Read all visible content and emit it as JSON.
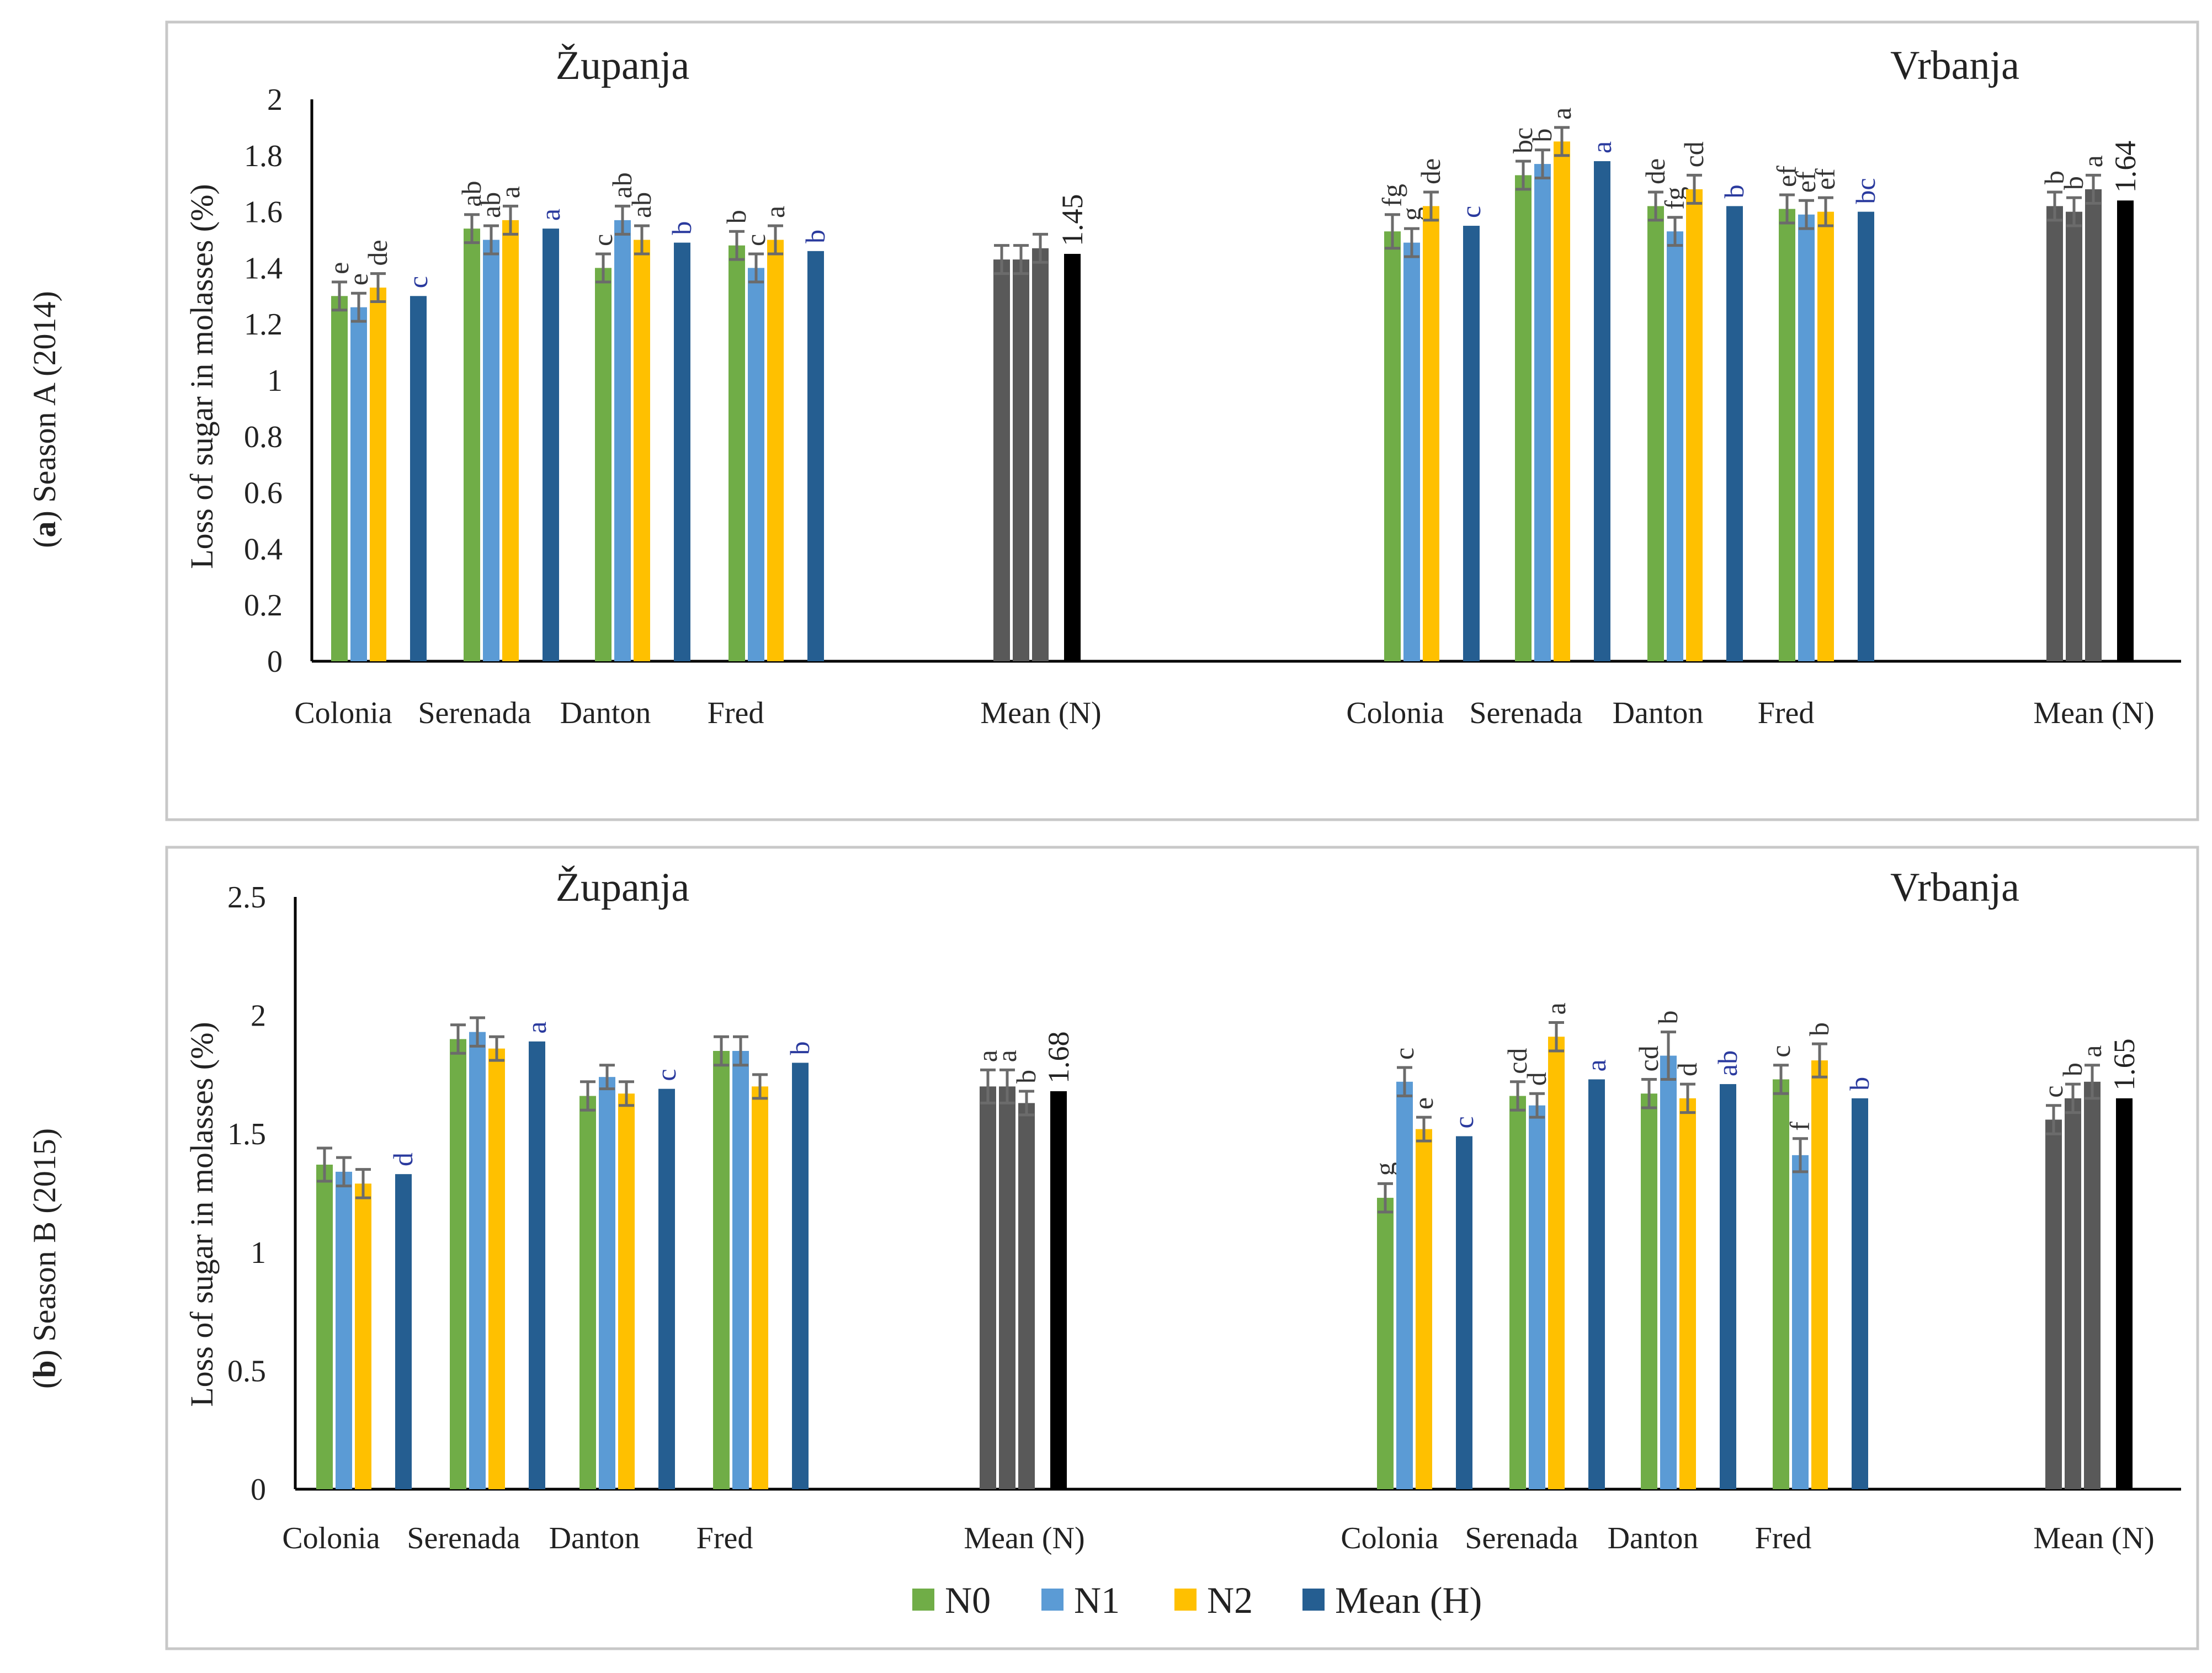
{
  "colors": {
    "N0": "#70ad47",
    "N1": "#5b9bd5",
    "N2": "#ffc000",
    "MeanH": "#255e91",
    "MeanN": "#595959",
    "MeanOverall": "#000000",
    "letterBlue": "#2a3a9e",
    "letterDark": "#333333"
  },
  "legend": [
    "N0",
    "N1",
    "N2",
    "Mean (H)"
  ],
  "chart_data": [
    {
      "type": "bar",
      "panel_label_bold": "a",
      "panel_label_rest": ") Season A (2014)",
      "panel_label_open": "(",
      "ylabel": "Loss of sugar in molasses (%)",
      "ylim": [
        0,
        2
      ],
      "yticks": [
        "0",
        "0.2",
        "0.4",
        "0.6",
        "0.8",
        "1",
        "1.2",
        "1.4",
        "1.6",
        "1.8",
        "2"
      ],
      "locations": [
        {
          "title": "Županja",
          "categories": [
            "Colonia",
            "Serenada",
            "Danton",
            "Fred"
          ],
          "series": [
            {
              "name": "N0",
              "values": [
                1.3,
                1.54,
                1.4,
                1.48
              ],
              "errors": [
                0.05,
                0.05,
                0.05,
                0.05
              ],
              "letters": [
                "e",
                "ab",
                "c",
                "b"
              ]
            },
            {
              "name": "N1",
              "values": [
                1.26,
                1.5,
                1.57,
                1.4
              ],
              "errors": [
                0.05,
                0.05,
                0.05,
                0.05
              ],
              "letters": [
                "e",
                "ab",
                "ab",
                "c"
              ]
            },
            {
              "name": "N2",
              "values": [
                1.33,
                1.57,
                1.5,
                1.5
              ],
              "errors": [
                0.05,
                0.05,
                0.05,
                0.05
              ],
              "letters": [
                "de",
                "a",
                "ab",
                "a"
              ]
            },
            {
              "name": "Mean (H)",
              "values": [
                1.3,
                1.54,
                1.49,
                1.46
              ],
              "letters": [
                "c",
                "a",
                "b",
                "b"
              ]
            }
          ],
          "meanN": {
            "label": "Mean (N)",
            "values": [
              1.43,
              1.43,
              1.47
            ],
            "errors": [
              0.05,
              0.05,
              0.05
            ],
            "letters": [
              "",
              "",
              ""
            ],
            "overall": 1.45,
            "overall_label": "1.45"
          }
        },
        {
          "title": "Vrbanja",
          "categories": [
            "Colonia",
            "Serenada",
            "Danton",
            "Fred"
          ],
          "series": [
            {
              "name": "N0",
              "values": [
                1.53,
                1.73,
                1.62,
                1.61
              ],
              "errors": [
                0.06,
                0.05,
                0.05,
                0.05
              ],
              "letters": [
                "fg",
                "bc",
                "de",
                "ef"
              ]
            },
            {
              "name": "N1",
              "values": [
                1.49,
                1.77,
                1.53,
                1.59
              ],
              "errors": [
                0.05,
                0.05,
                0.05,
                0.05
              ],
              "letters": [
                "g",
                "b",
                "fg",
                "ef"
              ]
            },
            {
              "name": "N2",
              "values": [
                1.62,
                1.85,
                1.68,
                1.6
              ],
              "errors": [
                0.05,
                0.05,
                0.05,
                0.05
              ],
              "letters": [
                "de",
                "a",
                "cd",
                "ef"
              ]
            },
            {
              "name": "Mean (H)",
              "values": [
                1.55,
                1.78,
                1.62,
                1.6
              ],
              "letters": [
                "c",
                "a",
                "b",
                "bc"
              ]
            }
          ],
          "meanN": {
            "label": "Mean (N)",
            "values": [
              1.62,
              1.6,
              1.68
            ],
            "errors": [
              0.05,
              0.05,
              0.05
            ],
            "letters": [
              "b",
              "b",
              "a"
            ],
            "overall": 1.64,
            "overall_label": "1.64"
          }
        }
      ]
    },
    {
      "type": "bar",
      "panel_label_bold": "b",
      "panel_label_rest": ") Season B (2015)",
      "panel_label_open": "(",
      "ylabel": "Loss of sugar in molasses (%)",
      "ylim": [
        0,
        2.5
      ],
      "yticks": [
        "0",
        "0.5",
        "1",
        "1.5",
        "2",
        "2.5"
      ],
      "locations": [
        {
          "title": "Županja",
          "categories": [
            "Colonia",
            "Serenada",
            "Danton",
            "Fred"
          ],
          "series": [
            {
              "name": "N0",
              "values": [
                1.37,
                1.9,
                1.66,
                1.85
              ],
              "errors": [
                0.07,
                0.06,
                0.06,
                0.06
              ],
              "letters": [
                "",
                "",
                "",
                ""
              ]
            },
            {
              "name": "N1",
              "values": [
                1.34,
                1.93,
                1.74,
                1.85
              ],
              "errors": [
                0.06,
                0.06,
                0.05,
                0.06
              ],
              "letters": [
                "",
                "",
                "",
                ""
              ]
            },
            {
              "name": "N2",
              "values": [
                1.29,
                1.86,
                1.67,
                1.7
              ],
              "errors": [
                0.06,
                0.05,
                0.05,
                0.05
              ],
              "letters": [
                "",
                "",
                "",
                ""
              ]
            },
            {
              "name": "Mean (H)",
              "values": [
                1.33,
                1.89,
                1.69,
                1.8
              ],
              "letters": [
                "d",
                "a",
                "c",
                "b"
              ]
            }
          ],
          "meanN": {
            "label": "Mean (N)",
            "values": [
              1.7,
              1.7,
              1.63
            ],
            "errors": [
              0.07,
              0.07,
              0.05
            ],
            "letters": [
              "a",
              "a",
              "b"
            ],
            "overall": 1.68,
            "overall_label": "1.68"
          }
        },
        {
          "title": "Vrbanja",
          "categories": [
            "Colonia",
            "Serenada",
            "Danton",
            "Fred"
          ],
          "series": [
            {
              "name": "N0",
              "values": [
                1.23,
                1.66,
                1.67,
                1.73
              ],
              "errors": [
                0.06,
                0.06,
                0.06,
                0.06
              ],
              "letters": [
                "g",
                "cd",
                "cd",
                "c"
              ]
            },
            {
              "name": "N1",
              "values": [
                1.72,
                1.62,
                1.83,
                1.41
              ],
              "errors": [
                0.06,
                0.05,
                0.1,
                0.07
              ],
              "letters": [
                "c",
                "d",
                "b",
                "f"
              ]
            },
            {
              "name": "N2",
              "values": [
                1.52,
                1.91,
                1.65,
                1.81
              ],
              "errors": [
                0.05,
                0.06,
                0.06,
                0.07
              ],
              "letters": [
                "e",
                "a",
                "d",
                "b"
              ]
            },
            {
              "name": "Mean (H)",
              "values": [
                1.49,
                1.73,
                1.71,
                1.65
              ],
              "letters": [
                "c",
                "a",
                "ab",
                "b"
              ]
            }
          ],
          "meanN": {
            "label": "Mean (N)",
            "values": [
              1.56,
              1.65,
              1.72
            ],
            "errors": [
              0.06,
              0.06,
              0.07
            ],
            "letters": [
              "c",
              "b",
              "a"
            ],
            "overall": 1.65,
            "overall_label": "1.65"
          }
        }
      ]
    }
  ]
}
